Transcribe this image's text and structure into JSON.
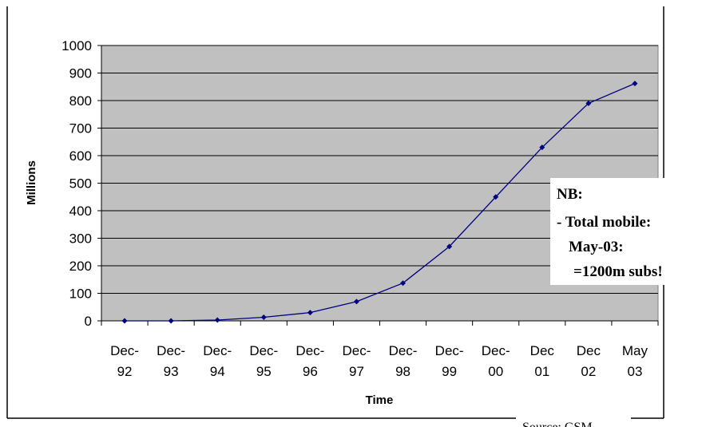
{
  "chart_data": {
    "type": "line",
    "categories": [
      [
        "Dec-",
        "92"
      ],
      [
        "Dec-",
        "93"
      ],
      [
        "Dec-",
        "94"
      ],
      [
        "Dec-",
        "95"
      ],
      [
        "Dec-",
        "96"
      ],
      [
        "Dec-",
        "97"
      ],
      [
        "Dec-",
        "98"
      ],
      [
        "Dec-",
        "99"
      ],
      [
        "Dec-",
        "00"
      ],
      [
        "Dec",
        "01"
      ],
      [
        "Dec",
        "02"
      ],
      [
        "May",
        "03"
      ]
    ],
    "series": [
      {
        "values": [
          0,
          0,
          3,
          13,
          30,
          70,
          137,
          270,
          450,
          630,
          790,
          862
        ]
      }
    ],
    "xlabel": "Time",
    "ylabel": "Millions",
    "ylim": [
      0,
      1000
    ],
    "yticks": [
      0,
      100,
      200,
      300,
      400,
      500,
      600,
      700,
      800,
      900,
      1000
    ],
    "grid": true,
    "plot_background": "#c0c0c0",
    "line_color": "#000080",
    "annotation": {
      "lines": [
        "NB:",
        "- Total mobile:",
        "May-03:",
        "=1200m subs!"
      ]
    },
    "source": "Source: GSM"
  }
}
